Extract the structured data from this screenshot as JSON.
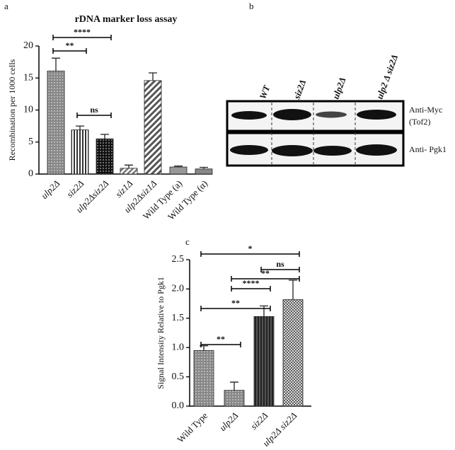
{
  "panel_labels": [
    "a",
    "b",
    "c"
  ],
  "chart_data": [
    {
      "type": "bar",
      "title": "rDNA marker loss assay",
      "y_label": "Recombination per 1000 cells",
      "categories": [
        "ulp2Δ",
        "siz2Δ",
        "ulp2Δsiz2Δ",
        "siz1Δ",
        "ulp2Δsiz1Δ",
        "Wild Type (a)",
        "Wild Type (α)"
      ],
      "values": [
        16.1,
        6.9,
        5.5,
        0.9,
        14.6,
        1.1,
        0.8
      ],
      "errors": [
        2.0,
        0.6,
        0.7,
        0.5,
        1.2,
        0.15,
        0.25
      ],
      "ylim": [
        0,
        20
      ],
      "yticks": [
        0,
        5,
        10,
        15,
        20
      ],
      "annotations": [
        "**",
        "****",
        "ns"
      ]
    },
    {
      "type": "bar",
      "y_label": "Signal Intensity Relative to  Pgk1",
      "categories": [
        "Wild Type",
        "ulp2Δ",
        "siz2Δ",
        "ulp2Δ siz2Δ"
      ],
      "values": [
        0.95,
        0.27,
        1.53,
        1.82
      ],
      "errors": [
        0.08,
        0.14,
        0.18,
        0.33
      ],
      "ylim": [
        0,
        2.5
      ],
      "yticks": [
        {
          "value": 0,
          "label": "0.0"
        },
        0.5,
        {
          "value": 1,
          "label": "1.0"
        },
        1.5,
        {
          "value": 2,
          "label": "2.0"
        },
        2.5
      ],
      "annotations": [
        "*",
        "ns",
        "**",
        "****",
        "**",
        "**"
      ]
    }
  ],
  "blot": {
    "lanes": [
      "WT",
      "siz2Δ",
      "ulp2Δ",
      "ulp2 Δ siz2Δ"
    ],
    "rows": [
      "Anti-Myc",
      "(Tof2)",
      "Anti- Pgk1"
    ]
  }
}
